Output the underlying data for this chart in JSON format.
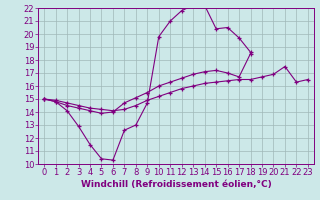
{
  "xlabel": "Windchill (Refroidissement éolien,°C)",
  "x_values": [
    0,
    1,
    2,
    3,
    4,
    5,
    6,
    7,
    8,
    9,
    10,
    11,
    12,
    13,
    14,
    15,
    16,
    17,
    18,
    19,
    20,
    21,
    22,
    23
  ],
  "line1": [
    15.0,
    14.8,
    14.1,
    12.9,
    11.5,
    10.4,
    10.3,
    12.6,
    13.0,
    14.7,
    19.8,
    21.0,
    21.8,
    22.2,
    22.2,
    20.4,
    20.5,
    19.7,
    18.6,
    null,
    null,
    null,
    null,
    null
  ],
  "line2": [
    15.0,
    14.8,
    14.5,
    14.3,
    14.1,
    13.9,
    14.0,
    14.7,
    15.1,
    15.5,
    16.0,
    16.3,
    16.6,
    16.9,
    17.1,
    17.2,
    17.0,
    16.7,
    18.5,
    null,
    null,
    null,
    null,
    null
  ],
  "line3": [
    15.0,
    14.9,
    14.7,
    14.5,
    14.3,
    14.2,
    14.1,
    14.2,
    14.5,
    14.9,
    15.2,
    15.5,
    15.8,
    16.0,
    16.2,
    16.3,
    16.4,
    16.5,
    16.5,
    16.7,
    16.9,
    17.5,
    16.3,
    16.5
  ],
  "line_color": "#800080",
  "bg_color": "#cce8e8",
  "grid_color": "#a0b8b8",
  "ylim": [
    10,
    22
  ],
  "xlim": [
    -0.5,
    23.5
  ],
  "yticks": [
    10,
    11,
    12,
    13,
    14,
    15,
    16,
    17,
    18,
    19,
    20,
    21,
    22
  ],
  "xticks": [
    0,
    1,
    2,
    3,
    4,
    5,
    6,
    7,
    8,
    9,
    10,
    11,
    12,
    13,
    14,
    15,
    16,
    17,
    18,
    19,
    20,
    21,
    22,
    23
  ],
  "tick_fontsize": 6,
  "xlabel_fontsize": 6.5
}
